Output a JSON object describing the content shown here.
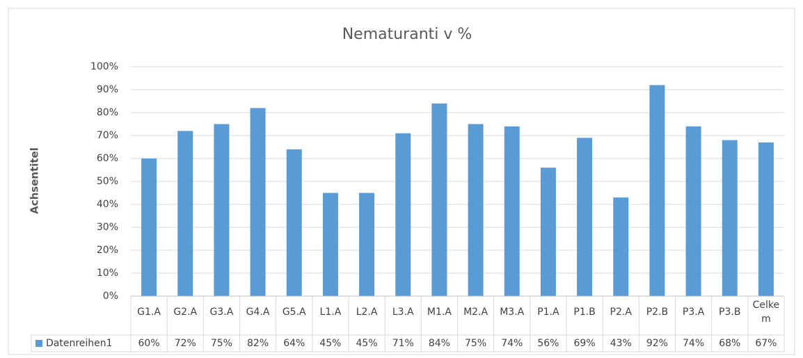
{
  "chart_data": {
    "type": "bar",
    "title": "Nematuranti v %",
    "y_label": "Achsentitel",
    "categories": [
      "G1.A",
      "G2.A",
      "G3.A",
      "G4.A",
      "G5.A",
      "L1.A",
      "L2.A",
      "L3.A",
      "M1.A",
      "M2.A",
      "M3.A",
      "P1.A",
      "P1.B",
      "P2.A",
      "P2.B",
      "P3.A",
      "P3.B",
      "Celkem"
    ],
    "series": [
      {
        "name": "Datenreihen1",
        "color": "#5b9bd5",
        "values": [
          60,
          72,
          75,
          82,
          64,
          45,
          45,
          71,
          84,
          75,
          74,
          56,
          69,
          43,
          92,
          74,
          68,
          67
        ],
        "value_labels": [
          "60%",
          "72%",
          "75%",
          "82%",
          "64%",
          "45%",
          "45%",
          "71%",
          "84%",
          "75%",
          "74%",
          "56%",
          "69%",
          "43%",
          "92%",
          "74%",
          "68%",
          "67%"
        ]
      }
    ],
    "ylim": [
      0,
      100
    ],
    "yticks": [
      {
        "value": 0,
        "label": "0%"
      },
      {
        "value": 10,
        "label": "10%"
      },
      {
        "value": 20,
        "label": "20%"
      },
      {
        "value": 30,
        "label": "30%"
      },
      {
        "value": 40,
        "label": "40%"
      },
      {
        "value": 50,
        "label": "50%"
      },
      {
        "value": 60,
        "label": "60%"
      },
      {
        "value": 70,
        "label": "70%"
      },
      {
        "value": 80,
        "label": "80%"
      },
      {
        "value": 90,
        "label": "90%"
      },
      {
        "value": 100,
        "label": "100%"
      }
    ],
    "grid": true,
    "data_table": true
  }
}
